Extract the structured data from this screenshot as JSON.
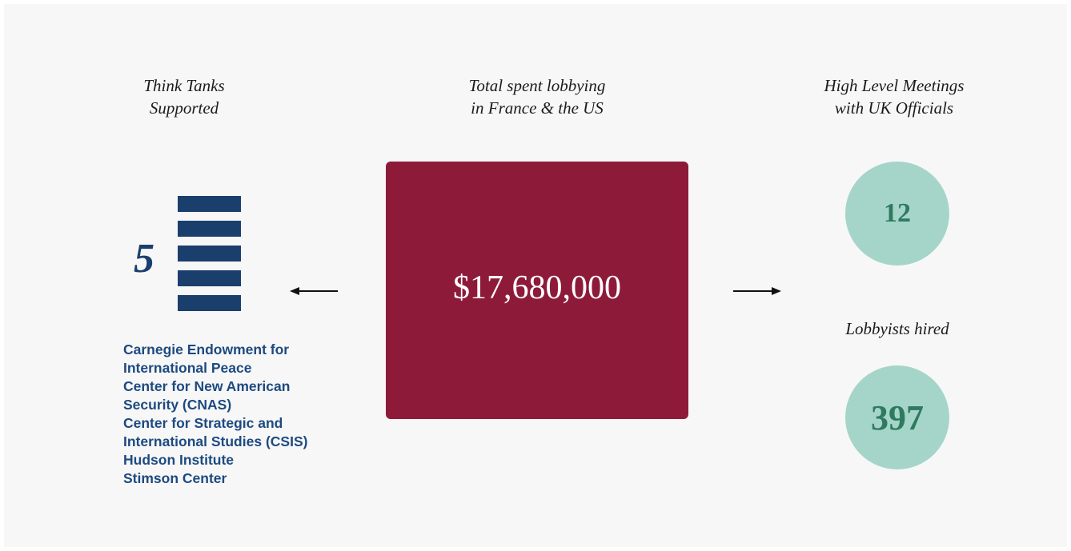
{
  "left": {
    "title": "Think Tanks\nSupported",
    "count": "5",
    "items": [
      "Carnegie Endowment for International Peace",
      "Center for New American Security (CNAS)",
      "Center for Strategic and International Studies (CSIS)",
      "Hudson Institute",
      "Stimson Center"
    ]
  },
  "center": {
    "title": "Total spent lobbying\nin France & the US",
    "amount": "$17,680,000"
  },
  "right": {
    "title": "High Level Meetings\nwith UK Officials",
    "meetings": "12",
    "lobbyists_title": "Lobbyists hired",
    "lobbyists": "397"
  }
}
